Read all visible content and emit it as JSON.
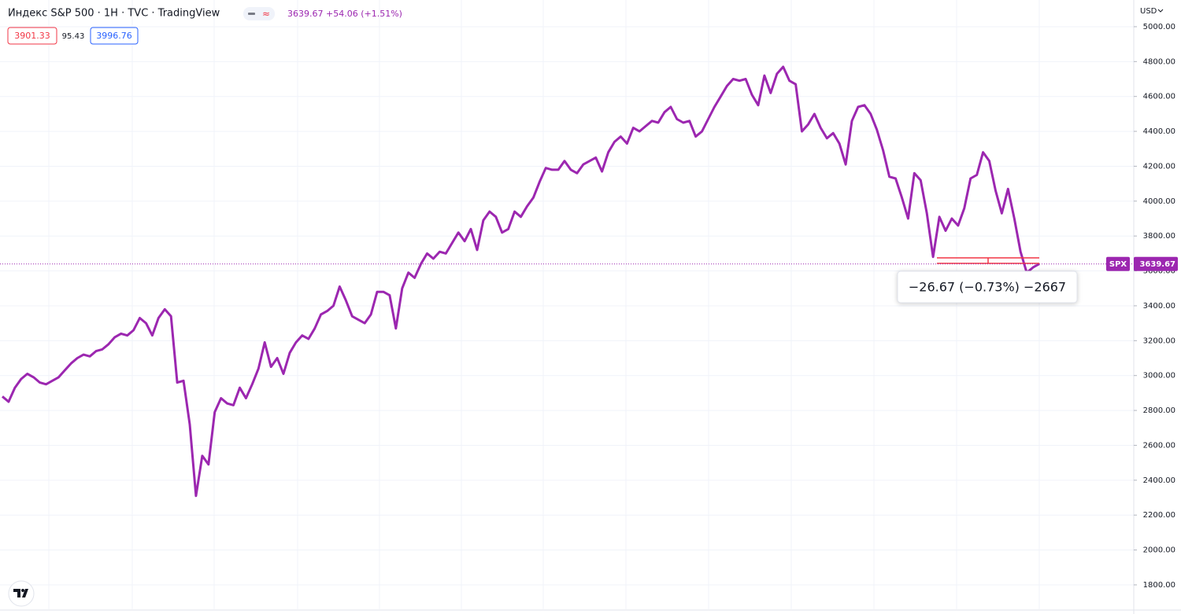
{
  "header": {
    "title": "Индекс S&P 500 · 1H · TVC · TradingView",
    "quote": "3639.67 +54.06 (+1.51%)",
    "indicators": [
      "3901.33",
      "95.43",
      "3996.76"
    ],
    "currency": "USD",
    "symbol": "SPX",
    "measure": "−26.67 (−0.73%) −2667"
  },
  "chart_data": {
    "type": "line",
    "color": "#9c27b0",
    "grid": true,
    "values": [
      2880,
      2850,
      2930,
      2980,
      3010,
      2990,
      2960,
      2950,
      2970,
      2990,
      3030,
      3070,
      3100,
      3120,
      3110,
      3140,
      3150,
      3180,
      3220,
      3240,
      3230,
      3260,
      3330,
      3300,
      3230,
      3330,
      3380,
      3340,
      2960,
      2970,
      2720,
      2310,
      2540,
      2490,
      2790,
      2870,
      2840,
      2830,
      2930,
      2870,
      2950,
      3040,
      3190,
      3050,
      3100,
      3010,
      3130,
      3190,
      3230,
      3210,
      3270,
      3350,
      3370,
      3400,
      3510,
      3430,
      3340,
      3320,
      3300,
      3350,
      3480,
      3480,
      3460,
      3270,
      3500,
      3590,
      3560,
      3640,
      3700,
      3670,
      3710,
      3700,
      3760,
      3820,
      3770,
      3840,
      3720,
      3890,
      3940,
      3910,
      3820,
      3840,
      3940,
      3910,
      3970,
      4020,
      4110,
      4190,
      4180,
      4180,
      4230,
      4180,
      4160,
      4210,
      4230,
      4250,
      4170,
      4280,
      4340,
      4370,
      4330,
      4420,
      4400,
      4430,
      4460,
      4450,
      4510,
      4540,
      4470,
      4450,
      4460,
      4370,
      4400,
      4470,
      4540,
      4600,
      4660,
      4700,
      4690,
      4700,
      4610,
      4550,
      4720,
      4620,
      4730,
      4770,
      4690,
      4670,
      4400,
      4440,
      4500,
      4420,
      4360,
      4390,
      4330,
      4210,
      4460,
      4540,
      4550,
      4500,
      4410,
      4290,
      4140,
      4130,
      4020,
      3900,
      4160,
      4120,
      3930,
      3680,
      3910,
      3830,
      3900,
      3860,
      3960,
      4130,
      4150,
      4280,
      4230,
      4060,
      3930,
      4070,
      3900,
      3710,
      3590,
      3620,
      3640
    ],
    "ylim": [
      1660,
      5153
    ],
    "yticks": [
      {
        "value": 1800,
        "label": "1800.00"
      },
      {
        "value": 2000,
        "label": "2000.00"
      },
      {
        "value": 2200,
        "label": "2200.00"
      },
      {
        "value": 2400,
        "label": "2400.00"
      },
      {
        "value": 2600,
        "label": "2600.00"
      },
      {
        "value": 2800,
        "label": "2800.00"
      },
      {
        "value": 3000,
        "label": "3000.00"
      },
      {
        "value": 3200,
        "label": "3200.00"
      },
      {
        "value": 3400,
        "label": "3400.00"
      },
      {
        "value": 3600,
        "label": "3600.00"
      },
      {
        "value": 3800,
        "label": "3800.00"
      },
      {
        "value": 4000,
        "label": "4000.00"
      },
      {
        "value": 4200,
        "label": "4200.00"
      },
      {
        "value": 4400,
        "label": "4400.00"
      },
      {
        "value": 4600,
        "label": "4600.00"
      },
      {
        "value": 4800,
        "label": "4800.00"
      },
      {
        "value": 5000,
        "label": "5000.00"
      }
    ],
    "price_line": {
      "value": 3639.67,
      "label": "3639.67"
    }
  }
}
